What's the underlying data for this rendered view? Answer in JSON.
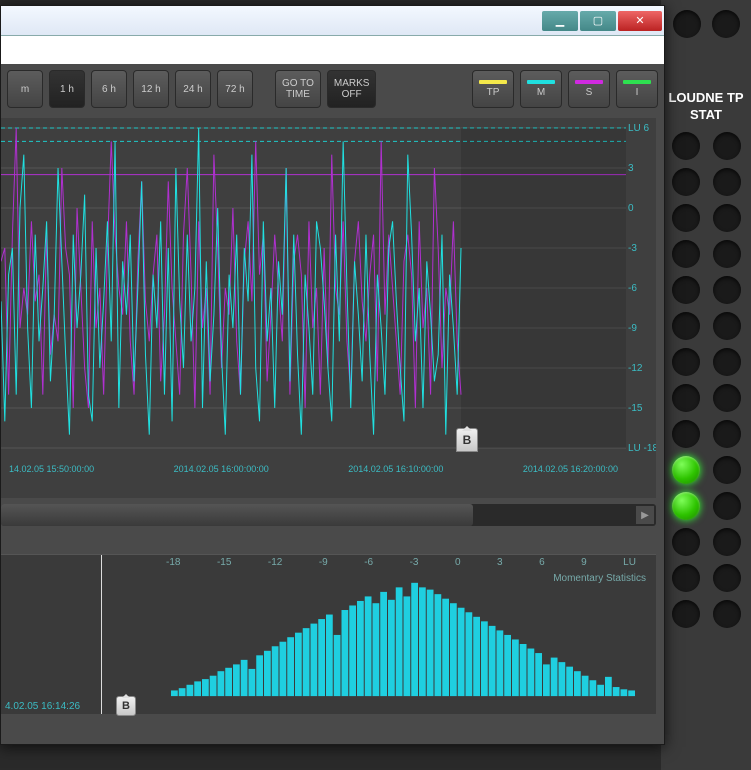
{
  "side": {
    "title": "LOUDNE\nTP STAT",
    "leds": [
      [
        false,
        false
      ],
      [
        false,
        false
      ],
      [
        false,
        false
      ],
      [
        false,
        false
      ],
      [
        false,
        false
      ],
      [
        false,
        false
      ],
      [
        false,
        false
      ],
      [
        false,
        false
      ],
      [
        false,
        false
      ],
      [
        false,
        false
      ],
      [
        true,
        false
      ],
      [
        true,
        false
      ],
      [
        false,
        false
      ],
      [
        false,
        false
      ],
      [
        false,
        false
      ]
    ]
  },
  "toolbar": {
    "ranges": [
      "m",
      "1 h",
      "6 h",
      "12 h",
      "24 h",
      "72 h"
    ],
    "active_range_index": 1,
    "goto": "GO TO\nTIME",
    "marks": "MARKS\nOFF",
    "meas": [
      {
        "label": "TP",
        "color": "#f4e84a"
      },
      {
        "label": "M",
        "color": "#20e0e0"
      },
      {
        "label": "S",
        "color": "#d02ae0"
      },
      {
        "label": "I",
        "color": "#2ee050"
      }
    ]
  },
  "chart": {
    "background": "#3f3f3f",
    "grid_color": "#555",
    "dash_color": "#1fc9c9",
    "series": {
      "m": {
        "color": "#20e0e0"
      },
      "s": {
        "color": "#b030d0"
      }
    },
    "ylim": [
      -18,
      6
    ],
    "yticks": [
      {
        "v": 6,
        "label": "LU 6"
      },
      {
        "v": 3,
        "label": "3"
      },
      {
        "v": 0,
        "label": "0"
      },
      {
        "v": -3,
        "label": "-3"
      },
      {
        "v": -6,
        "label": "-6"
      },
      {
        "v": -9,
        "label": "-9"
      },
      {
        "v": -12,
        "label": "-12"
      },
      {
        "v": -15,
        "label": "-15"
      },
      {
        "v": -18,
        "label": "LU -18"
      }
    ],
    "xticks": [
      "14.02.05 15:50:00:00",
      "2014.02.05 16:00:00:00",
      "2014.02.05 16:10:00:00",
      "2014.02.05 16:20:00:00"
    ],
    "marker": "B",
    "solid_ref_color": "#b030d0",
    "s_values": [
      -4,
      -3,
      -14,
      -2,
      6,
      -9,
      -6,
      -8,
      -1,
      -7,
      -5,
      -14,
      -2,
      -11,
      -8,
      -10,
      3,
      -3,
      -5,
      -15,
      0,
      -6,
      -12,
      -15,
      -1,
      -9,
      -6,
      -14,
      -3,
      5,
      -2,
      -6,
      -8,
      -1,
      -10,
      -14,
      -4,
      2,
      -7,
      -10,
      -5,
      -2,
      -13,
      -8,
      2,
      -6,
      -10,
      -14,
      -2,
      3,
      -5,
      -15,
      -1,
      -9,
      -6,
      -14,
      4,
      -3,
      -12,
      -6,
      -8,
      0,
      -10,
      -14,
      -4,
      -1,
      -7,
      5,
      -5,
      -2,
      -13,
      -8,
      -2,
      -6,
      -10,
      3,
      -14,
      -4,
      -2,
      -5,
      -15,
      -1,
      -9,
      -6,
      -14,
      -3,
      -12,
      4,
      -6,
      -8,
      -1,
      -10,
      -14,
      -4,
      -1,
      -7,
      -10,
      -5,
      -2,
      -13,
      5,
      -8,
      -2,
      -6,
      -10,
      -14,
      -4,
      -2,
      -5,
      -15,
      -1,
      -9,
      -6,
      -14,
      3,
      -3,
      -12,
      -6,
      -8,
      -1,
      -10,
      -14
    ],
    "m_values": [
      -7,
      -16,
      -5,
      -3,
      -14,
      0,
      4,
      -9,
      -15,
      -2,
      -10,
      -6,
      -1,
      -13,
      -8,
      3,
      -4,
      -11,
      -17,
      -2,
      -9,
      -5,
      1,
      -14,
      -16,
      -3,
      -12,
      -7,
      -1,
      -10,
      5,
      -15,
      -4,
      -8,
      -2,
      -13,
      -6,
      2,
      -11,
      -17,
      -5,
      -9,
      -1,
      -14,
      -3,
      -16,
      3,
      -7,
      -12,
      -2,
      -10,
      -6,
      6,
      -15,
      -4,
      -13,
      -8,
      0,
      -11,
      -17,
      -5,
      -9,
      -2,
      -14,
      -3,
      -7,
      4,
      -12,
      -16,
      -1,
      -10,
      -6,
      -15,
      -4,
      -8,
      3,
      -13,
      -2,
      -11,
      -17,
      -5,
      -9,
      -14,
      -1,
      -3,
      -7,
      -12,
      -16,
      -2,
      -10,
      5,
      -6,
      -15,
      -4,
      -8,
      -13,
      -2,
      -11,
      -17,
      -5,
      -9,
      -14,
      -3,
      -1,
      -7,
      -12,
      -16,
      4,
      -2,
      -10,
      -6,
      -15,
      -4,
      -8,
      -13,
      -11,
      -2,
      -17,
      -5,
      -9,
      -14,
      -3
    ]
  },
  "histogram": {
    "label": "Momentary Statistics",
    "color": "#1fcfe0",
    "background": "#3a3a3a",
    "xticks": [
      "-18",
      "-15",
      "-12",
      "-9",
      "-6",
      "-3",
      "0",
      "3",
      "6",
      "9",
      "LU"
    ],
    "xlim": [
      -20,
      10
    ],
    "ylim": [
      0,
      100
    ],
    "values": [
      5,
      7,
      10,
      13,
      15,
      18,
      22,
      25,
      28,
      32,
      24,
      36,
      40,
      44,
      48,
      52,
      56,
      60,
      64,
      68,
      72,
      54,
      76,
      80,
      84,
      88,
      82,
      92,
      85,
      96,
      88,
      100,
      96,
      94,
      90,
      86,
      82,
      78,
      74,
      70,
      66,
      62,
      58,
      54,
      50,
      46,
      42,
      38,
      28,
      34,
      30,
      26,
      22,
      18,
      14,
      10,
      17,
      8,
      6,
      5
    ],
    "marker": "B",
    "footer_time": "4.02.05 16:14:26"
  },
  "window_controls": {
    "min": "▁",
    "max": "▢",
    "close": "✕"
  }
}
